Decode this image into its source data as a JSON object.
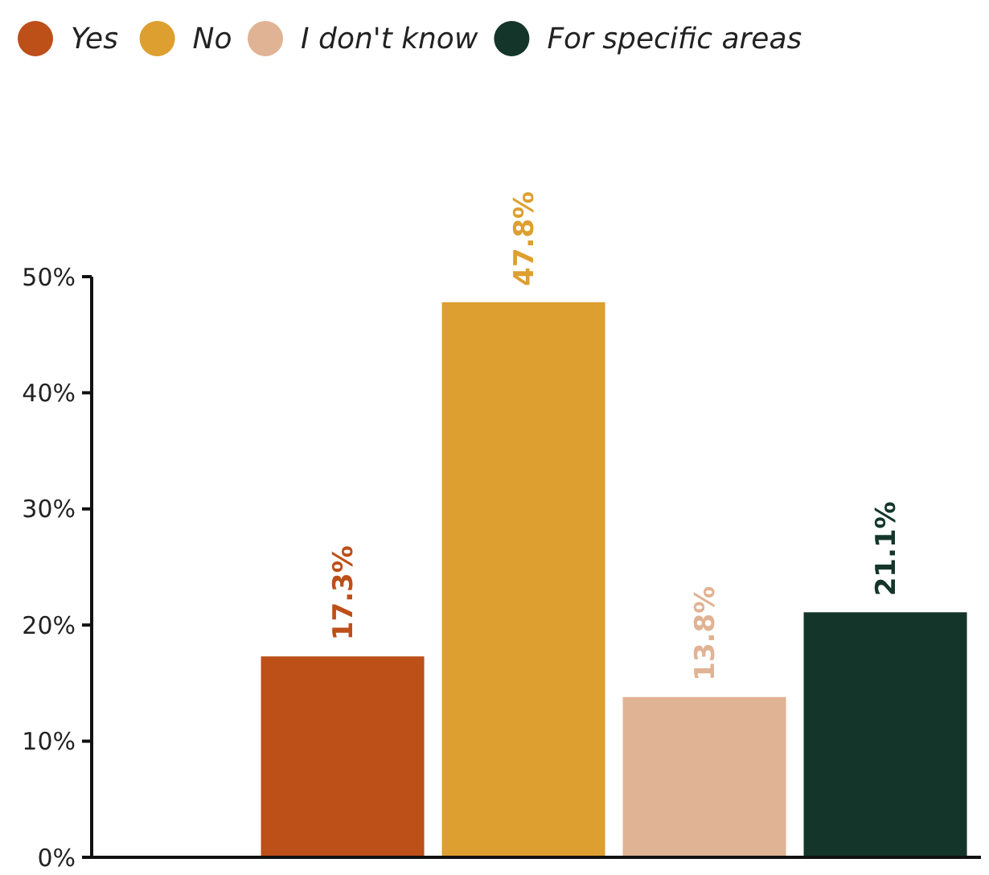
{
  "chart_data": {
    "type": "bar",
    "categories": [
      null
    ],
    "series": [
      {
        "name": "Yes",
        "color": "#bd4f19",
        "values": [
          17.3
        ]
      },
      {
        "name": "No",
        "color": "#dd9f2f",
        "values": [
          47.8
        ]
      },
      {
        "name": "I don't know",
        "color": "#e0b394",
        "values": [
          13.8
        ]
      },
      {
        "name": "For specific areas",
        "color": "#14362a",
        "values": [
          21.1
        ]
      }
    ],
    "ylim": [
      0,
      50
    ],
    "yticks": [
      {
        "value": 0,
        "label": "0%"
      },
      {
        "value": 10,
        "label": "10%"
      },
      {
        "value": 20,
        "label": "20%"
      },
      {
        "value": 30,
        "label": "30%"
      },
      {
        "value": 40,
        "label": "40%"
      },
      {
        "value": 50,
        "label": "50%"
      }
    ],
    "value_labels": [
      "17.3%",
      "47.8%",
      "13.8%",
      "21.1%"
    ],
    "grid": false,
    "legend": "top"
  }
}
